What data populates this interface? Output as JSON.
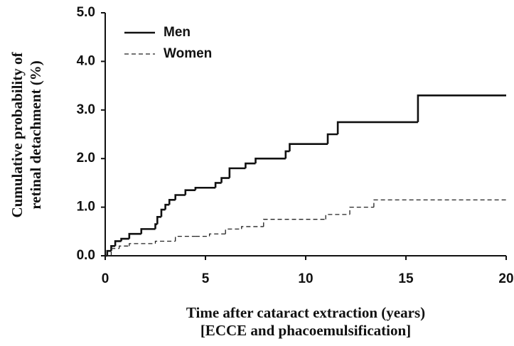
{
  "chart_data": {
    "type": "line",
    "step": true,
    "xlabel": [
      "Time after cataract extraction (years)",
      "[ECCE and phacoemulsification]"
    ],
    "ylabel": [
      "Cumulative probability of",
      "retinal detachment (%)"
    ],
    "xlim": [
      0,
      20
    ],
    "xticks": [
      0,
      5,
      10,
      15,
      20
    ],
    "ylim": [
      0,
      5
    ],
    "yticks": [
      {
        "value": 0,
        "label": "0.0"
      },
      {
        "value": 1,
        "label": "1.0"
      },
      {
        "value": 2,
        "label": "2.0"
      },
      {
        "value": 3,
        "label": "3.0"
      },
      {
        "value": 4,
        "label": "4.0"
      },
      {
        "value": 5,
        "label": "5.0"
      }
    ],
    "legend": "upper left",
    "series": [
      {
        "name": "Men",
        "color": "#111111",
        "linestyle": "solid",
        "x": [
          0,
          0.1,
          0.3,
          0.5,
          0.8,
          1.2,
          1.8,
          2.5,
          2.6,
          2.8,
          3.0,
          3.2,
          3.5,
          4.0,
          4.5,
          5.5,
          5.8,
          6.2,
          7.0,
          7.5,
          9.0,
          9.2,
          11.1,
          11.6,
          15.6,
          20
        ],
        "values": [
          0,
          0.1,
          0.2,
          0.3,
          0.35,
          0.45,
          0.55,
          0.65,
          0.8,
          0.95,
          1.05,
          1.15,
          1.25,
          1.35,
          1.4,
          1.5,
          1.6,
          1.8,
          1.9,
          2.0,
          2.15,
          2.3,
          2.5,
          2.75,
          3.3,
          3.3
        ]
      },
      {
        "name": "Women",
        "color": "#222222",
        "linestyle": "dashed",
        "x": [
          0,
          0.3,
          0.7,
          1.2,
          2.5,
          3.5,
          4.5,
          5.2,
          6.0,
          6.8,
          7.9,
          11.0,
          12.2,
          13.4,
          20
        ],
        "values": [
          0,
          0.15,
          0.2,
          0.25,
          0.3,
          0.4,
          0.4,
          0.45,
          0.55,
          0.6,
          0.75,
          0.85,
          1.0,
          1.15,
          1.15
        ]
      }
    ]
  }
}
